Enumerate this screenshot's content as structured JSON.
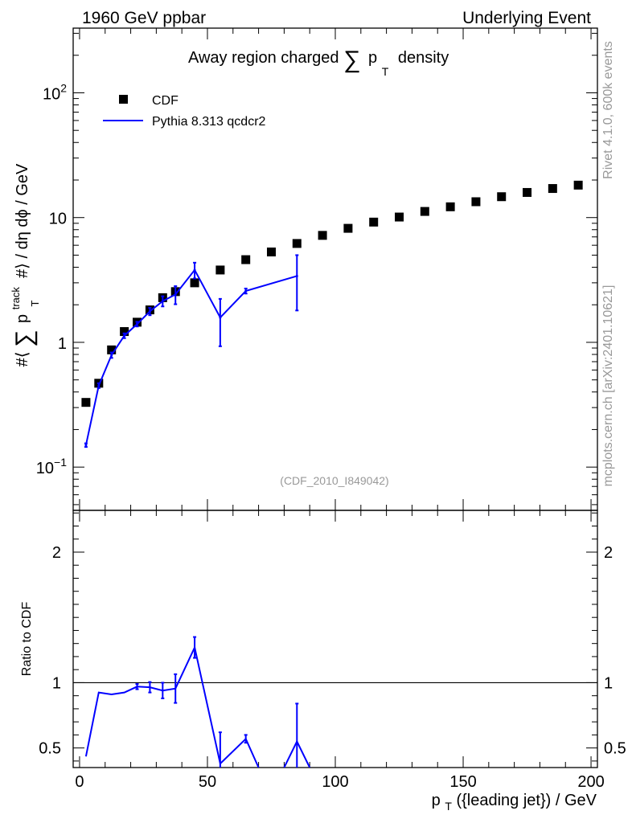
{
  "header": {
    "left": "1960 GeV ppbar",
    "right": "Underlying Event"
  },
  "side_labels": {
    "rivet": "Rivet 4.1.0,  600k events",
    "mcplots": "mcplots.cern.ch [arXiv:2401.10621]"
  },
  "colors": {
    "data": "#000000",
    "mc": "#0000ff",
    "analysis_id": "#999999",
    "side_text": "#999999"
  },
  "chart_data": [
    {
      "type": "scatter",
      "panel": "main",
      "title_parts": {
        "pre": "Away region charged",
        "sum": "∑",
        "p": "p",
        "sub": "T",
        "post": "density"
      },
      "ylabel_parts": {
        "a": "#⟨",
        "sum": "∑",
        "p": "p",
        "sup": "track",
        "sub": "T",
        "b": "#⟩ / dη dϕ / GeV"
      },
      "analysis_id": "(CDF_2010_I849042)",
      "yscale": "log",
      "ylim": [
        0.045,
        330
      ],
      "xlim": [
        -2.5,
        202.5
      ],
      "y_ticks": [
        {
          "value": 0.1,
          "base": "10",
          "exp": "−1"
        },
        {
          "value": 1,
          "base": "1",
          "exp": ""
        },
        {
          "value": 10,
          "base": "10",
          "exp": ""
        },
        {
          "value": 100,
          "base": "10",
          "exp": "2"
        }
      ],
      "legend": {
        "position": "top-left",
        "entries": [
          "CDF",
          "Pythia 8.313 qcdcr2"
        ]
      },
      "series": [
        {
          "name": "CDF",
          "style": "square-markers",
          "x": [
            2.5,
            7.5,
            12.5,
            17.5,
            22.5,
            27.5,
            32.5,
            37.5,
            45,
            55,
            65,
            75,
            85,
            95,
            105,
            115,
            125,
            135,
            145,
            155,
            165,
            175,
            185,
            195
          ],
          "y": [
            0.33,
            0.47,
            0.87,
            1.22,
            1.45,
            1.82,
            2.28,
            2.55,
            3.0,
            3.8,
            4.6,
            5.3,
            6.2,
            7.2,
            8.2,
            9.2,
            10.1,
            11.2,
            12.2,
            13.4,
            14.7,
            15.9,
            17.1,
            18.2
          ]
        },
        {
          "name": "Pythia 8.313 qcdcr2",
          "style": "line-with-errors",
          "x": [
            2.5,
            7.5,
            12.5,
            17.5,
            22.5,
            27.5,
            32.5,
            37.5,
            45,
            55,
            65,
            85
          ],
          "y": [
            0.15,
            0.45,
            0.79,
            1.13,
            1.4,
            1.77,
            2.14,
            2.42,
            3.8,
            1.58,
            2.58,
            3.4
          ],
          "err": [
            0.005,
            0.02,
            0.04,
            0.05,
            0.06,
            0.12,
            0.2,
            0.4,
            0.55,
            0.65,
            0.12,
            1.6
          ]
        }
      ]
    },
    {
      "type": "line",
      "panel": "ratio",
      "ylabel": "Ratio to CDF",
      "ylim": [
        0.35,
        2.32
      ],
      "xlim": [
        -2.5,
        202.5
      ],
      "reference_line": 1,
      "y_ticks": [
        0.5,
        1,
        2
      ],
      "x_ticks": [
        0,
        50,
        100,
        150,
        200
      ],
      "xlabel_parts": {
        "p": "p",
        "sub": "T",
        "rest": "({leading jet}) / GeV"
      },
      "series": [
        {
          "name": "Pythia 8.313 qcdcr2",
          "segments": [
            {
              "x": [
                2.5,
                7.5,
                12.5,
                17.5,
                22.5,
                27.5,
                32.5,
                37.5,
                45,
                55,
                65,
                70
              ],
              "y": [
                0.435,
                0.925,
                0.91,
                0.925,
                0.97,
                0.965,
                0.94,
                0.955,
                1.27,
                0.38,
                0.57,
                0.35
              ]
            },
            {
              "x": [
                80,
                85,
                90
              ],
              "y": [
                0.35,
                0.55,
                0.35
              ]
            }
          ],
          "error_points": {
            "x": [
              22.5,
              27.5,
              32.5,
              37.5,
              45,
              55,
              65,
              85
            ],
            "y": [
              0.97,
              0.965,
              0.94,
              0.955,
              1.27,
              0.38,
              0.57,
              0.55
            ],
            "err": [
              0.02,
              0.04,
              0.06,
              0.11,
              0.08,
              0.24,
              0.03,
              0.29
            ]
          }
        }
      ]
    }
  ]
}
